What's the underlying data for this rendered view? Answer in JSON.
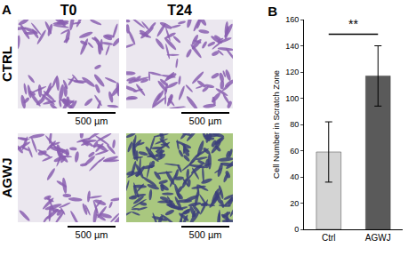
{
  "chart_data": {
    "type": "bar",
    "title": "B",
    "y_label": "Cell Number in Scratch Zone",
    "categories": [
      "Ctrl",
      "AGWJ"
    ],
    "values": [
      59,
      117
    ],
    "error": [
      23,
      23
    ],
    "colors": [
      "#d4d4d4",
      "#5a5a5a"
    ],
    "ylim": [
      0,
      160
    ],
    "yticks": [
      0,
      20,
      40,
      60,
      80,
      100,
      120,
      140,
      160
    ],
    "grid": false,
    "annotations": [
      {
        "text": "**",
        "between": [
          "Ctrl",
          "AGWJ"
        ]
      }
    ]
  },
  "panel_a": {
    "label": "A",
    "columns": [
      "T0",
      "T24"
    ],
    "rows": [
      "CTRL",
      "AGWJ"
    ],
    "scale_bar": "500 µm"
  }
}
